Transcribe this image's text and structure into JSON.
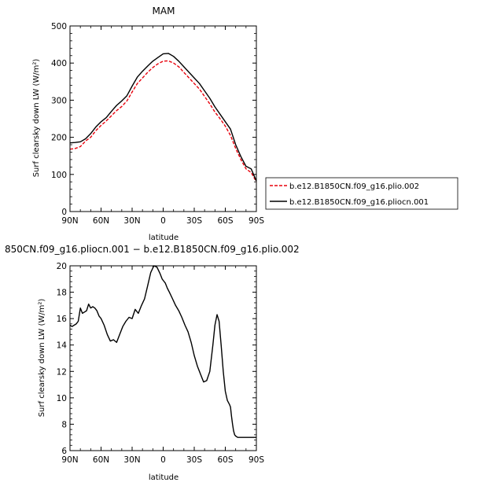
{
  "chart_data": [
    {
      "type": "line",
      "title": "MAM",
      "xlabel": "latitude",
      "ylabel": "Surf clearsky down LW (W/m²)",
      "xlim": [
        90,
        -90
      ],
      "ylim": [
        0,
        500
      ],
      "xticks": [
        90,
        60,
        30,
        0,
        -30,
        -60,
        -90
      ],
      "xtick_labels": [
        "90N",
        "60N",
        "30N",
        "0",
        "30S",
        "60S",
        "90S"
      ],
      "yticks": [
        0,
        100,
        200,
        300,
        400,
        500
      ],
      "ytick_labels": [
        "0",
        "100",
        "200",
        "300",
        "400",
        "500"
      ],
      "legend_position": "right-outside",
      "series": [
        {
          "name": "b.e12.B1850CN.f09_g16.plio.002",
          "color": "#e8000b",
          "style": "dashed",
          "x": [
            90,
            85,
            80,
            75,
            70,
            65,
            60,
            55,
            50,
            45,
            40,
            35,
            30,
            25,
            20,
            15,
            10,
            5,
            0,
            -5,
            -10,
            -15,
            -20,
            -25,
            -30,
            -35,
            -40,
            -45,
            -50,
            -55,
            -60,
            -65,
            -70,
            -75,
            -80,
            -85,
            -90
          ],
          "y": [
            168,
            170,
            175,
            190,
            200,
            218,
            232,
            244,
            258,
            272,
            283,
            298,
            322,
            345,
            360,
            375,
            388,
            398,
            405,
            406,
            400,
            390,
            375,
            360,
            345,
            330,
            310,
            290,
            268,
            250,
            230,
            205,
            170,
            140,
            115,
            105,
            80
          ]
        },
        {
          "name": "b.e12.B1850CN.f09_g16.pliocn.001",
          "color": "#000000",
          "style": "solid",
          "x": [
            90,
            85,
            80,
            75,
            70,
            65,
            60,
            55,
            50,
            45,
            40,
            35,
            30,
            25,
            20,
            15,
            10,
            5,
            0,
            -5,
            -10,
            -15,
            -20,
            -25,
            -30,
            -35,
            -40,
            -45,
            -50,
            -55,
            -60,
            -65,
            -70,
            -75,
            -80,
            -85,
            -90
          ],
          "y": [
            185,
            186,
            188,
            196,
            210,
            228,
            242,
            253,
            270,
            286,
            298,
            312,
            338,
            362,
            378,
            392,
            405,
            415,
            425,
            426,
            418,
            405,
            390,
            375,
            360,
            345,
            325,
            305,
            282,
            262,
            242,
            222,
            180,
            148,
            122,
            115,
            82
          ]
        }
      ]
    },
    {
      "type": "line",
      "title": "850CN.f09_g16.pliocn.001 − b.e12.B1850CN.f09_g16.plio.002",
      "xlabel": "latitude",
      "ylabel": "Surf clearsky down LW (W/m²)",
      "xlim": [
        90,
        -90
      ],
      "ylim": [
        6,
        20
      ],
      "xticks": [
        90,
        60,
        30,
        0,
        -30,
        -60,
        -90
      ],
      "xtick_labels": [
        "90N",
        "60N",
        "30N",
        "0",
        "30S",
        "60S",
        "90S"
      ],
      "yticks": [
        6,
        8,
        10,
        12,
        14,
        16,
        18,
        20
      ],
      "ytick_labels": [
        "6",
        "8",
        "10",
        "12",
        "14",
        "16",
        "18",
        "20"
      ],
      "series": [
        {
          "color": "#000000",
          "style": "solid",
          "x": [
            90,
            88,
            86,
            84,
            82,
            80,
            78,
            76,
            74,
            72,
            70,
            68,
            66,
            64,
            62,
            60,
            57,
            54,
            51,
            48,
            45,
            42,
            39,
            36,
            33,
            30,
            27,
            24,
            21,
            18,
            15,
            12,
            9,
            6,
            3,
            1,
            0,
            -2,
            -4,
            -6,
            -9,
            -12,
            -15,
            -18,
            -21,
            -24,
            -27,
            -30,
            -33,
            -36,
            -39,
            -42,
            -45,
            -48,
            -50,
            -52,
            -54,
            -56,
            -58,
            -60,
            -62,
            -64,
            -65,
            -66,
            -67,
            -68,
            -69,
            -70,
            -72,
            -74,
            -76,
            -78,
            -80,
            -82,
            -84,
            -86,
            -88,
            -90
          ],
          "y": [
            15.5,
            15.4,
            15.5,
            15.6,
            15.8,
            16.8,
            16.4,
            16.5,
            16.6,
            17.1,
            16.8,
            16.9,
            16.8,
            16.6,
            16.2,
            16.0,
            15.5,
            14.8,
            14.3,
            14.4,
            14.2,
            14.8,
            15.4,
            15.8,
            16.1,
            16.0,
            16.7,
            16.4,
            17.0,
            17.5,
            18.5,
            19.5,
            20.0,
            19.9,
            19.4,
            19.0,
            18.9,
            18.7,
            18.3,
            18.0,
            17.5,
            17.0,
            16.6,
            16.1,
            15.5,
            15.0,
            14.2,
            13.2,
            12.4,
            11.8,
            11.2,
            11.3,
            12.0,
            14.0,
            15.5,
            16.3,
            15.8,
            14.0,
            12.0,
            10.5,
            9.8,
            9.5,
            9.3,
            8.6,
            8.0,
            7.5,
            7.2,
            7.1,
            7.0,
            7.0,
            7.0,
            7.0,
            7.0,
            7.0,
            7.0,
            7.0,
            7.0,
            7.0
          ]
        }
      ]
    }
  ]
}
